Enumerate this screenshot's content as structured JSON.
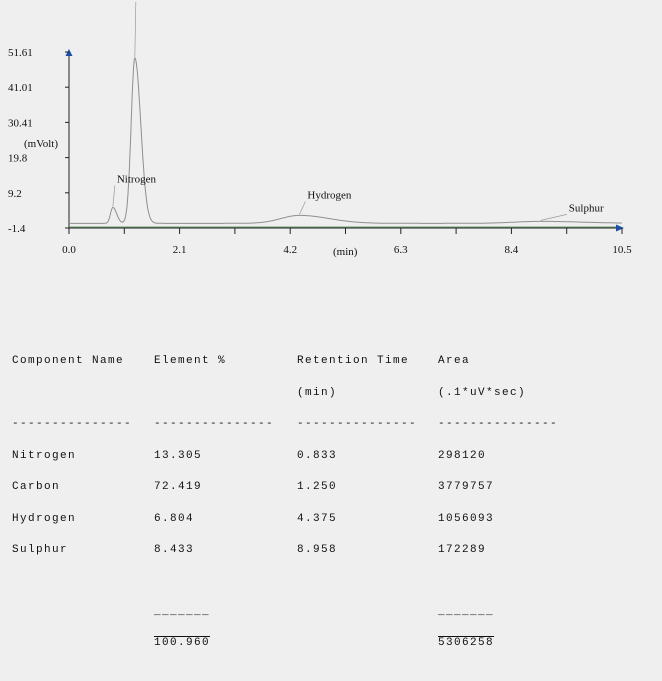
{
  "chart_data": {
    "type": "line",
    "ylabel": "(mVolt)",
    "xlabel": "(min)",
    "xlim": [
      0,
      10.5
    ],
    "ylim": [
      -1.4,
      51.61
    ],
    "y_ticks": [
      "51.61",
      "41.01",
      "30.41",
      "19.8",
      "9.2",
      "-1.4"
    ],
    "x_ticks": [
      "0.0",
      "2.1",
      "4.2",
      "6.3",
      "8.4",
      "10.5"
    ],
    "peaks": [
      {
        "name": "Nitrogen",
        "x": 0.833,
        "y": 4.8
      },
      {
        "name": "Carbon",
        "x": 1.25,
        "y": 49.8
      },
      {
        "name": "Hydrogen",
        "x": 4.375,
        "y": 2.4
      },
      {
        "name": "Sulphur",
        "x": 8.958,
        "y": 0.6
      }
    ],
    "grid": false,
    "line_color": "#8f8f8f",
    "baseline_color": "#4a8a4a",
    "axis_color": "#1f4ea8"
  },
  "table": {
    "headers": [
      {
        "name": "Component Name",
        "sub": ""
      },
      {
        "name": "Element %",
        "sub": ""
      },
      {
        "name": "Retention Time",
        "sub": "(min)"
      },
      {
        "name": "Area",
        "sub": "(.1*uV*sec)"
      }
    ],
    "dash": "---------------",
    "rows": [
      [
        "Nitrogen",
        "13.305",
        "0.833",
        "298120"
      ],
      [
        "Carbon",
        "72.419",
        "1.250",
        "3779757"
      ],
      [
        "Hydrogen",
        "6.804",
        "4.375",
        "1056093"
      ],
      [
        "Sulphur",
        "8.433",
        "8.958",
        "172289"
      ]
    ],
    "total_underline": "_______",
    "totals": {
      "element": "100.960",
      "area": "5306258"
    }
  }
}
